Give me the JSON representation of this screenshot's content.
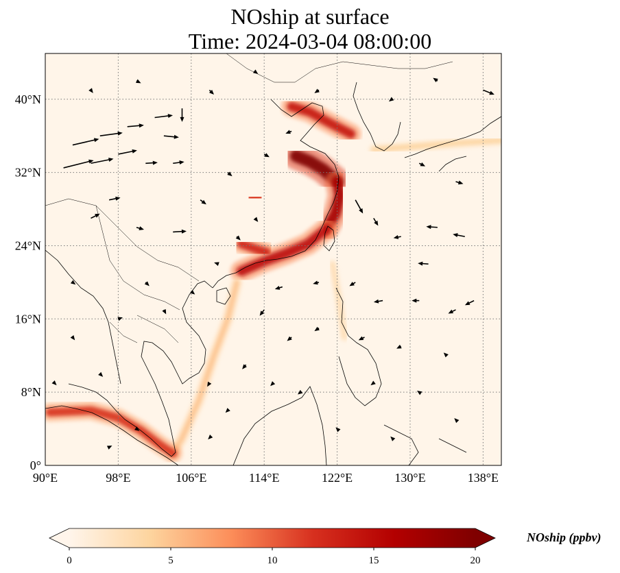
{
  "title": {
    "line1": "NOship at surface",
    "line2": "Time: 2024-03-04 08:00:00"
  },
  "map": {
    "lon_range": [
      90,
      140
    ],
    "lat_range": [
      0,
      45
    ],
    "lon_ticks": [
      {
        "value": 90,
        "label": "90°E"
      },
      {
        "value": 98,
        "label": "98°E"
      },
      {
        "value": 106,
        "label": "106°E"
      },
      {
        "value": 114,
        "label": "114°E"
      },
      {
        "value": 122,
        "label": "122°E"
      },
      {
        "value": 130,
        "label": "130°E"
      },
      {
        "value": 138,
        "label": "138°E"
      }
    ],
    "lat_ticks": [
      {
        "value": 0,
        "label": "0°"
      },
      {
        "value": 8,
        "label": "8°N"
      },
      {
        "value": 16,
        "label": "16°N"
      },
      {
        "value": 24,
        "label": "24°N"
      },
      {
        "value": 32,
        "label": "32°N"
      },
      {
        "value": 40,
        "label": "40°N"
      }
    ],
    "background_color": "#fff5e9",
    "grid": true
  },
  "colorbar": {
    "label": "NOship (ppbv)",
    "min": 0,
    "max": 20,
    "extend": "both",
    "ticks": [
      {
        "value": 0,
        "label": "0"
      },
      {
        "value": 5,
        "label": "5"
      },
      {
        "value": 10,
        "label": "10"
      },
      {
        "value": 15,
        "label": "15"
      },
      {
        "value": 20,
        "label": "20"
      }
    ],
    "colors": [
      "#fff5eb",
      "#fdd49e",
      "#fc8d59",
      "#d7301f",
      "#b30000",
      "#7f0000"
    ]
  },
  "emission_lanes": [
    {
      "name": "bohai",
      "points": [
        [
          117,
          39.2
        ],
        [
          119,
          38.6
        ],
        [
          121,
          37.5
        ],
        [
          123.5,
          36.2
        ]
      ],
      "value": 14
    },
    {
      "name": "yellow-sea-coast",
      "points": [
        [
          117.5,
          33.8
        ],
        [
          119,
          33.2
        ],
        [
          120.5,
          32.3
        ],
        [
          122,
          31
        ]
      ],
      "value": 20
    },
    {
      "name": "east-china-coast",
      "points": [
        [
          122,
          31
        ],
        [
          122.3,
          29.5
        ],
        [
          121.8,
          27.5
        ],
        [
          120.8,
          25.8
        ]
      ],
      "value": 17
    },
    {
      "name": "south-china-coast",
      "points": [
        [
          120.8,
          25.8
        ],
        [
          118.8,
          24.2
        ],
        [
          116.5,
          23.2
        ],
        [
          114,
          22.3
        ],
        [
          111.5,
          21.2
        ]
      ],
      "value": 15
    },
    {
      "name": "pearl-river-delta",
      "points": [
        [
          111.5,
          24.2
        ],
        [
          113.2,
          23.6
        ],
        [
          114.2,
          23.3
        ]
      ],
      "value": 13
    },
    {
      "name": "inland-yangtze",
      "points": [
        [
          112.5,
          29.2
        ],
        [
          113.5,
          29.3
        ]
      ],
      "value": 12
    },
    {
      "name": "sea-lane-sw",
      "points": [
        [
          111,
          20
        ],
        [
          110,
          16
        ],
        [
          108.5,
          12
        ],
        [
          106.8,
          7
        ],
        [
          105,
          3
        ],
        [
          104,
          1.3
        ]
      ],
      "value": 5
    },
    {
      "name": "malacca",
      "points": [
        [
          90.5,
          5.8
        ],
        [
          95,
          6
        ],
        [
          98,
          5.2
        ],
        [
          100.5,
          3.8
        ],
        [
          102.5,
          2.3
        ],
        [
          104,
          1.3
        ]
      ],
      "value": 12
    },
    {
      "name": "taiwan-strait-east",
      "points": [
        [
          121.5,
          22
        ],
        [
          122.2,
          18
        ],
        [
          122.8,
          14
        ]
      ],
      "value": 3
    },
    {
      "name": "tsushima",
      "points": [
        [
          126,
          34.5
        ],
        [
          130,
          34.8
        ],
        [
          135,
          35.2
        ],
        [
          140,
          35.5
        ]
      ],
      "value": 4
    }
  ],
  "wind_vectors": [
    {
      "lon": 92,
      "lat": 32.5,
      "u": 4,
      "v": 1
    },
    {
      "lon": 93,
      "lat": 35,
      "u": 3.5,
      "v": 0.8
    },
    {
      "lon": 95,
      "lat": 33,
      "u": 3,
      "v": 0.6
    },
    {
      "lon": 96,
      "lat": 36,
      "u": 3,
      "v": 0.4
    },
    {
      "lon": 98,
      "lat": 34,
      "u": 2.5,
      "v": 0.5
    },
    {
      "lon": 99,
      "lat": 37,
      "u": 2.2,
      "v": 0.2
    },
    {
      "lon": 102,
      "lat": 38,
      "u": 2.4,
      "v": 0.3
    },
    {
      "lon": 103,
      "lat": 36,
      "u": 2.0,
      "v": -0.2
    },
    {
      "lon": 104,
      "lat": 33,
      "u": 1.5,
      "v": 0.2
    },
    {
      "lon": 105,
      "lat": 39,
      "u": 0,
      "v": -1.8
    },
    {
      "lon": 101,
      "lat": 33,
      "u": 1.6,
      "v": 0.1
    },
    {
      "lon": 97,
      "lat": 29,
      "u": 1.5,
      "v": 0.3
    },
    {
      "lon": 95,
      "lat": 27,
      "u": 1.2,
      "v": 0.6
    },
    {
      "lon": 100,
      "lat": 26,
      "u": 1,
      "v": -0.3
    },
    {
      "lon": 104,
      "lat": 25.5,
      "u": 1.8,
      "v": 0.1
    },
    {
      "lon": 107,
      "lat": 29,
      "u": 0.8,
      "v": -0.6
    },
    {
      "lon": 110,
      "lat": 32,
      "u": 0.6,
      "v": -0.5
    },
    {
      "lon": 114,
      "lat": 34,
      "u": 0.7,
      "v": -0.4
    },
    {
      "lon": 117,
      "lat": 36.5,
      "u": -0.8,
      "v": -0.3
    },
    {
      "lon": 124,
      "lat": 29,
      "u": 1.0,
      "v": -1.8
    },
    {
      "lon": 126,
      "lat": 27,
      "u": 0.6,
      "v": -1.0
    },
    {
      "lon": 129,
      "lat": 25,
      "u": -1.0,
      "v": -0.2
    },
    {
      "lon": 132,
      "lat": 22,
      "u": -1.4,
      "v": 0.1
    },
    {
      "lon": 133,
      "lat": 26,
      "u": -1.5,
      "v": 0.1
    },
    {
      "lon": 136,
      "lat": 25,
      "u": -1.6,
      "v": 0.3
    },
    {
      "lon": 137,
      "lat": 18,
      "u": -1.2,
      "v": -0.6
    },
    {
      "lon": 135,
      "lat": 17,
      "u": -1.0,
      "v": -0.5
    },
    {
      "lon": 131,
      "lat": 18,
      "u": -1.0,
      "v": 0
    },
    {
      "lon": 127,
      "lat": 18,
      "u": -1.2,
      "v": -0.2
    },
    {
      "lon": 124,
      "lat": 20,
      "u": -0.8,
      "v": -0.5
    },
    {
      "lon": 120,
      "lat": 20,
      "u": -0.8,
      "v": -0.2
    },
    {
      "lon": 116,
      "lat": 19.5,
      "u": -1.0,
      "v": -0.3
    },
    {
      "lon": 114,
      "lat": 17,
      "u": -0.6,
      "v": -0.8
    },
    {
      "lon": 117,
      "lat": 14,
      "u": -0.6,
      "v": -0.5
    },
    {
      "lon": 120,
      "lat": 15,
      "u": -0.6,
      "v": -0.4
    },
    {
      "lon": 125,
      "lat": 14,
      "u": -0.8,
      "v": -0.4
    },
    {
      "lon": 129,
      "lat": 13,
      "u": -0.6,
      "v": -0.3
    },
    {
      "lon": 134,
      "lat": 12,
      "u": -0.4,
      "v": 0.4
    },
    {
      "lon": 112,
      "lat": 11,
      "u": -0.5,
      "v": -0.6
    },
    {
      "lon": 115,
      "lat": 9,
      "u": -0.4,
      "v": -0.4
    },
    {
      "lon": 118,
      "lat": 8,
      "u": -0.4,
      "v": -0.3
    },
    {
      "lon": 108,
      "lat": 9,
      "u": -0.3,
      "v": -0.5
    },
    {
      "lon": 110,
      "lat": 6,
      "u": -0.3,
      "v": -0.3
    },
    {
      "lon": 96,
      "lat": 10,
      "u": 0.4,
      "v": -0.4
    },
    {
      "lon": 93,
      "lat": 14,
      "u": 0.3,
      "v": -0.4
    },
    {
      "lon": 91,
      "lat": 9,
      "u": 0.3,
      "v": -0.3
    },
    {
      "lon": 98,
      "lat": 16,
      "u": 0.6,
      "v": 0.2
    },
    {
      "lon": 101,
      "lat": 20,
      "u": 0.5,
      "v": -0.5
    },
    {
      "lon": 103,
      "lat": 17,
      "u": 0.3,
      "v": -0.6
    },
    {
      "lon": 106,
      "lat": 19,
      "u": 0.5,
      "v": -0.4
    },
    {
      "lon": 109,
      "lat": 22,
      "u": -0.6,
      "v": 0.2
    },
    {
      "lon": 111,
      "lat": 25,
      "u": 0.5,
      "v": -0.5
    },
    {
      "lon": 113,
      "lat": 27,
      "u": 0.4,
      "v": -0.5
    },
    {
      "lon": 100,
      "lat": 4,
      "u": 0.4,
      "v": -0.3
    },
    {
      "lon": 97,
      "lat": 2,
      "u": 0.4,
      "v": 0.2
    },
    {
      "lon": 126,
      "lat": 9,
      "u": -0.4,
      "v": -0.3
    },
    {
      "lon": 131,
      "lat": 8,
      "u": -0.3,
      "v": 0.2
    },
    {
      "lon": 135,
      "lat": 5,
      "u": -0.2,
      "v": 0.2
    },
    {
      "lon": 128,
      "lat": 3,
      "u": -0.2,
      "v": 0.2
    },
    {
      "lon": 122,
      "lat": 4,
      "u": -0.2,
      "v": 0.2
    },
    {
      "lon": 108,
      "lat": 3,
      "u": -0.2,
      "v": -0.2
    },
    {
      "lon": 93,
      "lat": 20,
      "u": 0.4,
      "v": -0.3
    },
    {
      "lon": 95,
      "lat": 41,
      "u": 0.3,
      "v": -0.4
    },
    {
      "lon": 100,
      "lat": 42,
      "u": 0.6,
      "v": -0.3
    },
    {
      "lon": 108,
      "lat": 41,
      "u": 0.6,
      "v": -0.6
    },
    {
      "lon": 113,
      "lat": 43,
      "u": 0.4,
      "v": -0.3
    },
    {
      "lon": 120,
      "lat": 41,
      "u": -0.6,
      "v": -0.4
    },
    {
      "lon": 128,
      "lat": 40,
      "u": -0.4,
      "v": -0.3
    },
    {
      "lon": 133,
      "lat": 42,
      "u": -0.6,
      "v": 0.4
    },
    {
      "lon": 138,
      "lat": 41,
      "u": 1.5,
      "v": -0.6
    },
    {
      "lon": 131,
      "lat": 33,
      "u": 0.8,
      "v": -0.4
    },
    {
      "lon": 135,
      "lat": 31,
      "u": 1.0,
      "v": -0.3
    }
  ]
}
